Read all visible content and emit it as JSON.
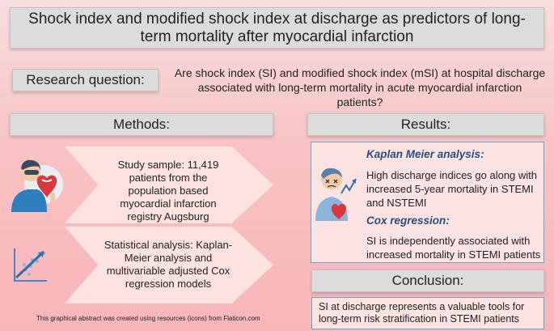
{
  "title": "Shock index and modified shock index at discharge as predictors of long-term mortality after myocardial infarction",
  "research": {
    "label": "Research question:",
    "text": "Are shock index (SI) and modified shock index (mSI) at hospital discharge associated with long-term mortality in acute myocardial infarction patients?"
  },
  "methods": {
    "heading": "Methods:",
    "study_sample": "Study sample: 11,419 patients from the population based myocardial infarction registry Augsburg",
    "statistical_analysis": "Statistical analysis: Kaplan-Meier analysis and multivariable adjusted Cox regression models"
  },
  "results": {
    "heading": "Results:",
    "km_heading": "Kaplan Meier analysis:",
    "km_text": "High discharge indices go along with increased 5-year mortality in STEMI and NSTEMI",
    "cox_heading": "Cox regression:",
    "cox_text": "SI is independently associated with increased mortality in STEMI patients"
  },
  "conclusion": {
    "heading": "Conclusion:",
    "text": "SI at discharge represents a valuable tools for long-term risk stratification in STEMI patients"
  },
  "footer": "This graphical abstract was created using resources (icons) from Flaticon.com",
  "icons": {
    "patient": "doctor-heart-icon",
    "statistics": "scatter-plot-icon",
    "sick_patient": "sick-patient-chart-icon"
  }
}
